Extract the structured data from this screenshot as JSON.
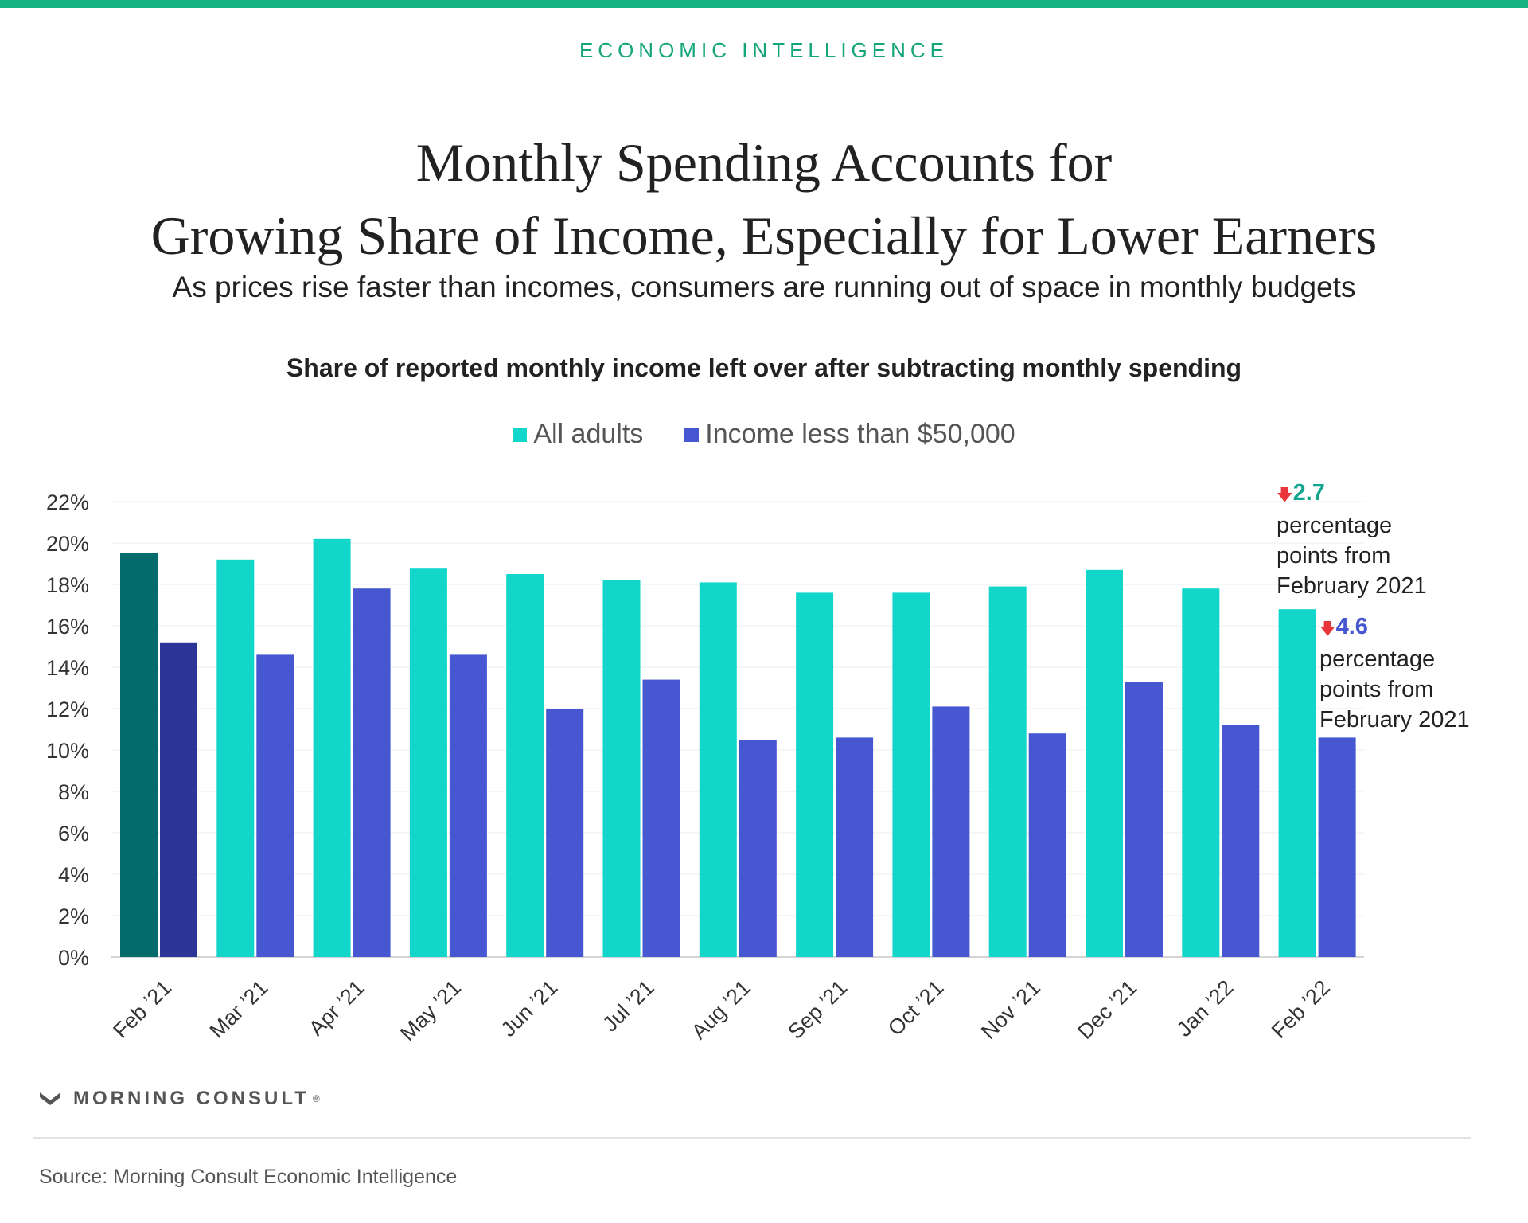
{
  "header": {
    "kicker": "ECONOMIC INTELLIGENCE",
    "title_line1": "Monthly Spending Accounts for",
    "title_line2": "Growing Share of Income, Especially for Lower Earners",
    "subtitle": "As prices rise faster than incomes, consumers are running out of space in monthly budgets"
  },
  "colors": {
    "brand_bar": "#14b482",
    "kicker": "#14a57a",
    "all_adults": "#12d6ca",
    "all_adults_highlight": "#036b6b",
    "income_lt_50k": "#4757d1",
    "income_lt_50k_highlight": "#2d3599",
    "arrow_down": "#e8363b",
    "annotation_all": "#14a58f",
    "annotation_income": "#4757d1"
  },
  "annotations": {
    "all_adults": {
      "value": "2.7",
      "text_line1": "percentage",
      "text_line2": "points from",
      "text_line3": "February 2021"
    },
    "income": {
      "value": "4.6",
      "text_line1": "percentage",
      "text_line2": "points from",
      "text_line3": "February 2021"
    }
  },
  "footer": {
    "logo_text": "MORNING CONSULT",
    "logo_mark": "®",
    "source": "Source: Morning Consult Economic Intelligence"
  },
  "chart_data": {
    "type": "bar",
    "title": "Share of reported monthly income left over after subtracting monthly spending",
    "categories": [
      "Feb ’21",
      "Mar ’21",
      "Apr ’21",
      "May ’21",
      "Jun ’21",
      "Jul ’21",
      "Aug ’21",
      "Sep ’21",
      "Oct ’21",
      "Nov ’21",
      "Dec ’21",
      "Jan ’22",
      "Feb ’22"
    ],
    "series": [
      {
        "name": "All adults",
        "values": [
          19.5,
          19.2,
          20.2,
          18.8,
          18.5,
          18.2,
          18.1,
          17.6,
          17.6,
          17.9,
          18.7,
          17.8,
          16.8
        ]
      },
      {
        "name": "Income less than $50,000",
        "values": [
          15.2,
          14.6,
          17.8,
          14.6,
          12.0,
          13.4,
          10.5,
          10.6,
          12.1,
          10.8,
          13.3,
          11.2,
          10.6
        ]
      }
    ],
    "highlight_index": 0,
    "ylim": [
      0,
      22
    ],
    "yticks": [
      0,
      2,
      4,
      6,
      8,
      10,
      12,
      14,
      16,
      18,
      20,
      22
    ],
    "ytick_suffix": "%",
    "grid": true,
    "legend_position": "top-center"
  }
}
